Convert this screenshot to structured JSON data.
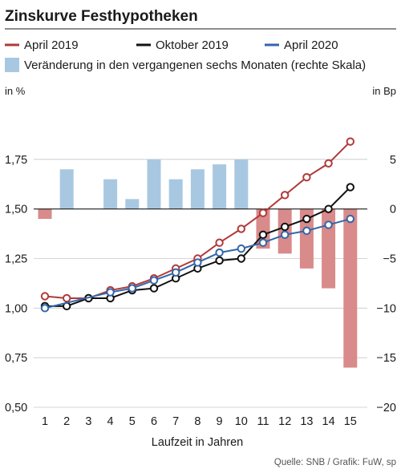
{
  "chart_data": {
    "type": "line",
    "title": "Zinskurve Festhypotheken",
    "xlabel": "Laufzeit in Jahren",
    "left_unit": "in %",
    "right_unit": "in Bp",
    "source": "Quelle: SNB / Grafik: FuW, sp",
    "categories": [
      1,
      2,
      3,
      4,
      5,
      6,
      7,
      8,
      9,
      10,
      11,
      12,
      13,
      14,
      15
    ],
    "ylim_left": [
      0.5,
      2.0
    ],
    "yticks_left": [
      "0,50",
      "0,75",
      "1,00",
      "1,25",
      "1,50",
      "1,75"
    ],
    "yticks_left_values": [
      0.5,
      0.75,
      1.0,
      1.25,
      1.5,
      1.75
    ],
    "ylim_right": [
      -20,
      10
    ],
    "yticks_right": [
      "−20",
      "−15",
      "−10",
      "−5",
      "0",
      "5"
    ],
    "yticks_right_values": [
      -20,
      -15,
      -10,
      -5,
      0,
      5
    ],
    "series": [
      {
        "name": "April 2019",
        "axis": "left",
        "color": "#b03a3a",
        "values": [
          1.06,
          1.05,
          1.05,
          1.09,
          1.11,
          1.15,
          1.2,
          1.25,
          1.33,
          1.4,
          1.48,
          1.57,
          1.66,
          1.73,
          1.84
        ]
      },
      {
        "name": "Oktober 2019",
        "axis": "left",
        "color": "#111111",
        "values": [
          1.01,
          1.01,
          1.05,
          1.05,
          1.09,
          1.1,
          1.15,
          1.2,
          1.24,
          1.25,
          1.37,
          1.41,
          1.45,
          1.5,
          1.61
        ]
      },
      {
        "name": "April 2020",
        "axis": "left",
        "color": "#3366aa",
        "values": [
          1.0,
          null,
          null,
          1.08,
          1.1,
          1.14,
          1.18,
          1.23,
          1.28,
          1.3,
          1.33,
          1.37,
          1.39,
          1.42,
          1.45
        ]
      }
    ],
    "bars": {
      "name": "Veränderung in den vergangenen sechs Monaten (rechte Skala)",
      "axis": "right",
      "color_pos": "#a8c8e2",
      "color_neg": "#d98a8a",
      "values": [
        -1,
        4,
        0,
        3,
        1,
        5,
        3,
        4,
        4.5,
        5,
        -4,
        -4.5,
        -6,
        -8,
        -16
      ]
    },
    "grid": "horizontal",
    "legend": "top"
  }
}
